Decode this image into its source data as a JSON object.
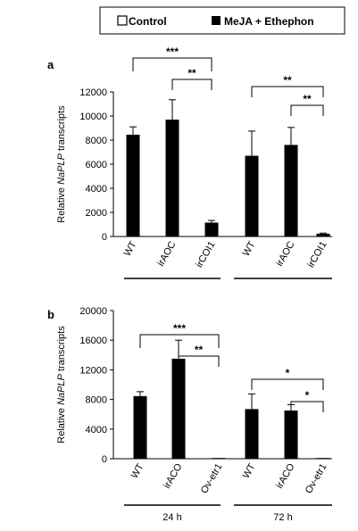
{
  "legend": {
    "items": [
      {
        "label": "Control",
        "swatch": "open"
      },
      {
        "label": "MeJA + Ethephon",
        "swatch": "filled"
      }
    ]
  },
  "chart_data": [
    {
      "type": "bar",
      "panel_label": "a",
      "ylabel_parts": [
        "Relative ",
        "NaPLP",
        " transcripts"
      ],
      "ylim": [
        0,
        12000
      ],
      "yticks": [
        0,
        2000,
        4000,
        6000,
        8000,
        10000,
        12000
      ],
      "categories": [
        "WT",
        "irAOC",
        "irCOI1",
        "WT",
        "irAOC",
        "irCOI1"
      ],
      "groups": [
        "",
        ""
      ],
      "series": [
        {
          "name": "MeJA + Ethephon",
          "color": "#000000",
          "values": [
            8450,
            9700,
            1150,
            6700,
            7600,
            230
          ],
          "errors": [
            650,
            1650,
            180,
            2050,
            1450,
            50
          ]
        }
      ],
      "significance": [
        {
          "from": 0,
          "to": 2,
          "label": "***"
        },
        {
          "from": 1,
          "to": 2,
          "label": "**"
        },
        {
          "from": 3,
          "to": 5,
          "label": "**"
        },
        {
          "from": 4,
          "to": 5,
          "label": "**"
        }
      ]
    },
    {
      "type": "bar",
      "panel_label": "b",
      "ylabel_parts": [
        "Relative ",
        "NaPLP",
        " transcripts"
      ],
      "ylim": [
        0,
        20000
      ],
      "yticks": [
        0,
        4000,
        8000,
        12000,
        16000,
        20000
      ],
      "categories": [
        "WT",
        "irACO",
        "Ov-etr1",
        "WT",
        "irACO",
        "Ov-etr1"
      ],
      "groups": [
        "24 h",
        "72 h"
      ],
      "series": [
        {
          "name": "MeJA + Ethephon",
          "color": "#000000",
          "values": [
            8450,
            13500,
            100,
            6700,
            6500,
            100
          ],
          "errors": [
            600,
            2500,
            0,
            2050,
            800,
            0
          ]
        }
      ],
      "significance": [
        {
          "from": 0,
          "to": 2,
          "label": "***"
        },
        {
          "from": 1,
          "to": 2,
          "label": "**"
        },
        {
          "from": 3,
          "to": 5,
          "label": "*"
        },
        {
          "from": 4,
          "to": 5,
          "label": "*"
        }
      ]
    }
  ]
}
